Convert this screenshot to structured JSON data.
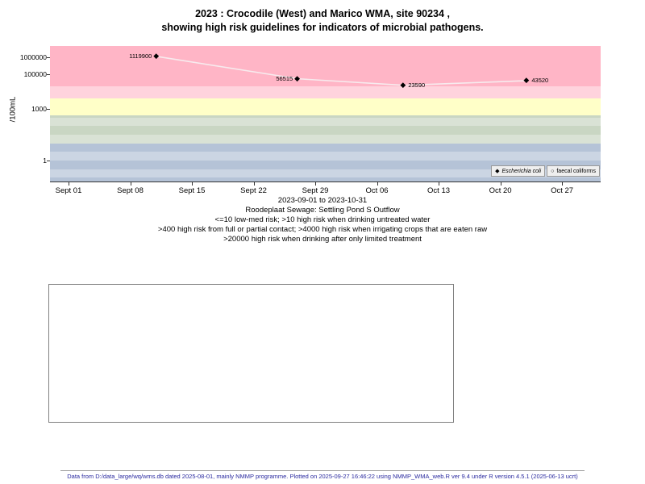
{
  "title": {
    "line1": "2023 : Crocodile (West) and Marico WMA, site 90234 ,",
    "line2": "showing high risk guidelines for indicators of microbial pathogens."
  },
  "chart_data": {
    "type": "scatter",
    "ylabel": "/100mL",
    "y_scale": "log10",
    "x_unit": "days since 2023-09-01",
    "x_range": [
      "2023-09-01",
      "2023-10-31"
    ],
    "grid": "banded-stripes",
    "legend_position": "bottom-right-inside",
    "x_ticks": [
      {
        "day": 0,
        "label": "Sept 01"
      },
      {
        "day": 7,
        "label": "Sept 08"
      },
      {
        "day": 14,
        "label": "Sept 15"
      },
      {
        "day": 21,
        "label": "Sept 22"
      },
      {
        "day": 28,
        "label": "Sept 29"
      },
      {
        "day": 35,
        "label": "Oct 06"
      },
      {
        "day": 42,
        "label": "Oct 13"
      },
      {
        "day": 49,
        "label": "Oct 20"
      },
      {
        "day": 56,
        "label": "Oct 27"
      }
    ],
    "y_ticks": [
      {
        "value": 1000000,
        "label": "1000000"
      },
      {
        "value": 100000,
        "label": "100000"
      },
      {
        "value": 1000,
        "label": "1000"
      },
      {
        "value": 1,
        "label": "1"
      }
    ],
    "bands": [
      {
        "range": "le10",
        "min": null,
        "max": 10,
        "color": "#b5c3d7"
      },
      {
        "range": "10-400",
        "min": 10,
        "max": 400,
        "color": "#c9d6c3"
      },
      {
        "range": "400-4000",
        "min": 400,
        "max": 4000,
        "color": "#ffffc8"
      },
      {
        "range": "4000-20000",
        "min": 4000,
        "max": 20000,
        "color": "#ffd3dd"
      },
      {
        "range": "gt20000",
        "min": 20000,
        "max": null,
        "color": "#ffb5c6"
      }
    ],
    "series": [
      {
        "name": "Escherichia coli",
        "marker": "diamond-filled",
        "color": "#000000",
        "line_color": "#f7ebee",
        "points": [
          {
            "day": 10,
            "value": 1119900,
            "label": "1119900",
            "label_side": "left"
          },
          {
            "day": 26,
            "value": 56515,
            "label": "56515",
            "label_side": "left"
          },
          {
            "day": 38,
            "value": 23590,
            "label": "23590",
            "label_side": "right"
          },
          {
            "day": 52,
            "value": 43520,
            "label": "43520",
            "label_side": "right"
          }
        ]
      },
      {
        "name": "faecal coliforms",
        "marker": "circle-open",
        "color": "#000000",
        "points": []
      }
    ],
    "legend": [
      {
        "label": "Escherichia coli",
        "marker": "diamond-filled",
        "italic": true
      },
      {
        "label": "faecal coliforms",
        "marker": "circle-open",
        "italic": false
      }
    ]
  },
  "caption": {
    "line1": "2023-09-01 to 2023-10-31",
    "line2": "Roodeplaat Sewage: Settling Pond S Outflow",
    "line3": "<=10 low-med risk; >10 high risk when drinking untreated water",
    "line4": ">400 high risk from full or partial contact; >4000 high risk when irrigating crops that are eaten raw",
    "line5": ">20000 high risk when drinking after only limited treatment"
  },
  "footer": {
    "text": "Data from D:/data_large/wq/wms.db dated 2025-08-01, mainly NMMP programme. Plotted on 2025-09-27 16:46:22 using NMMP_WMA_web.R ver 9.4 under R version 4.5.1 (2025-06-13 ucrt)"
  }
}
